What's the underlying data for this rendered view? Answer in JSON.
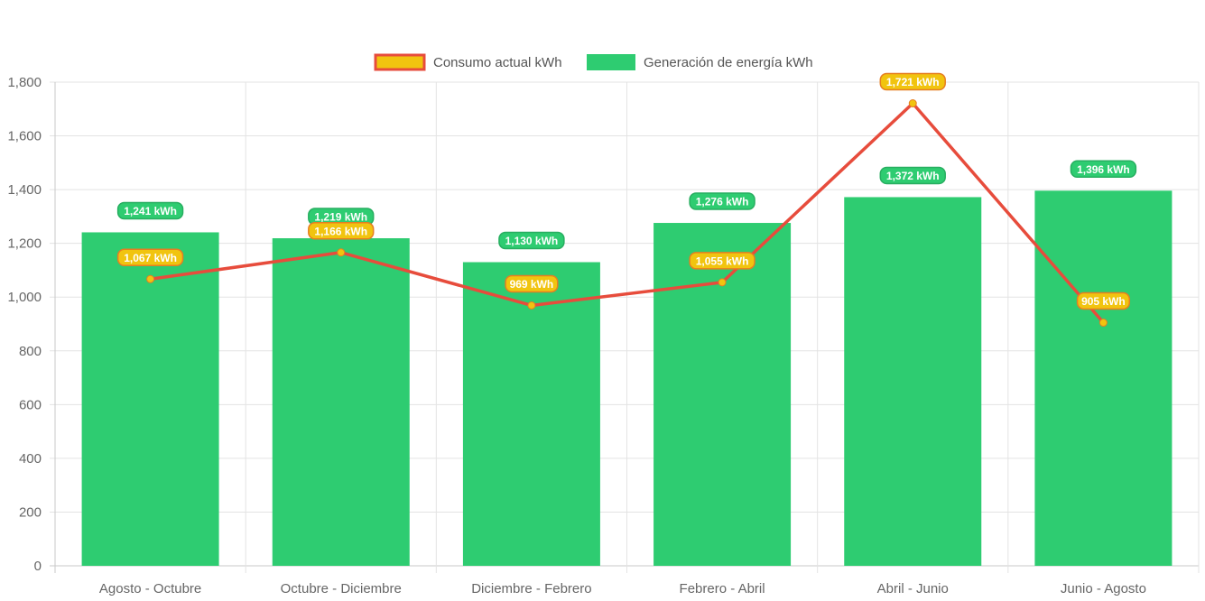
{
  "chart_data": {
    "type": "bar",
    "categories": [
      "Agosto - Octubre",
      "Octubre - Diciembre",
      "Diciembre - Febrero",
      "Febrero - Abril",
      "Abril - Junio",
      "Junio - Agosto"
    ],
    "series": [
      {
        "name": "Generación de energía kWh",
        "type": "bar",
        "color": "#2ecc71",
        "values": [
          1241,
          1219,
          1130,
          1276,
          1372,
          1396
        ],
        "labels": [
          "1,241 kWh",
          "1,219 kWh",
          "1,130 kWh",
          "1,276 kWh",
          "1,372 kWh",
          "1,396 kWh"
        ]
      },
      {
        "name": "Consumo actual kWh",
        "type": "line",
        "color": "#e74c3c",
        "point_color": "#f1c40f",
        "values": [
          1067,
          1166,
          969,
          1055,
          1721,
          905
        ],
        "labels": [
          "1,067 kWh",
          "1,166 kWh",
          "969 kWh",
          "1,055 kWh",
          "1,721 kWh",
          "905 kWh"
        ]
      }
    ],
    "legend_order": [
      "Consumo actual kWh",
      "Generación de energía kWh"
    ],
    "ylim": [
      0,
      1800
    ],
    "yticks": [
      0,
      200,
      400,
      600,
      800,
      1000,
      1200,
      1400,
      1600,
      1800
    ],
    "ytick_labels": [
      "0",
      "200",
      "400",
      "600",
      "800",
      "1,000",
      "1,200",
      "1,400",
      "1,600",
      "1,800"
    ],
    "title": "",
    "xlabel": "",
    "ylabel": "",
    "grid": true,
    "legend_position": "top-center"
  }
}
